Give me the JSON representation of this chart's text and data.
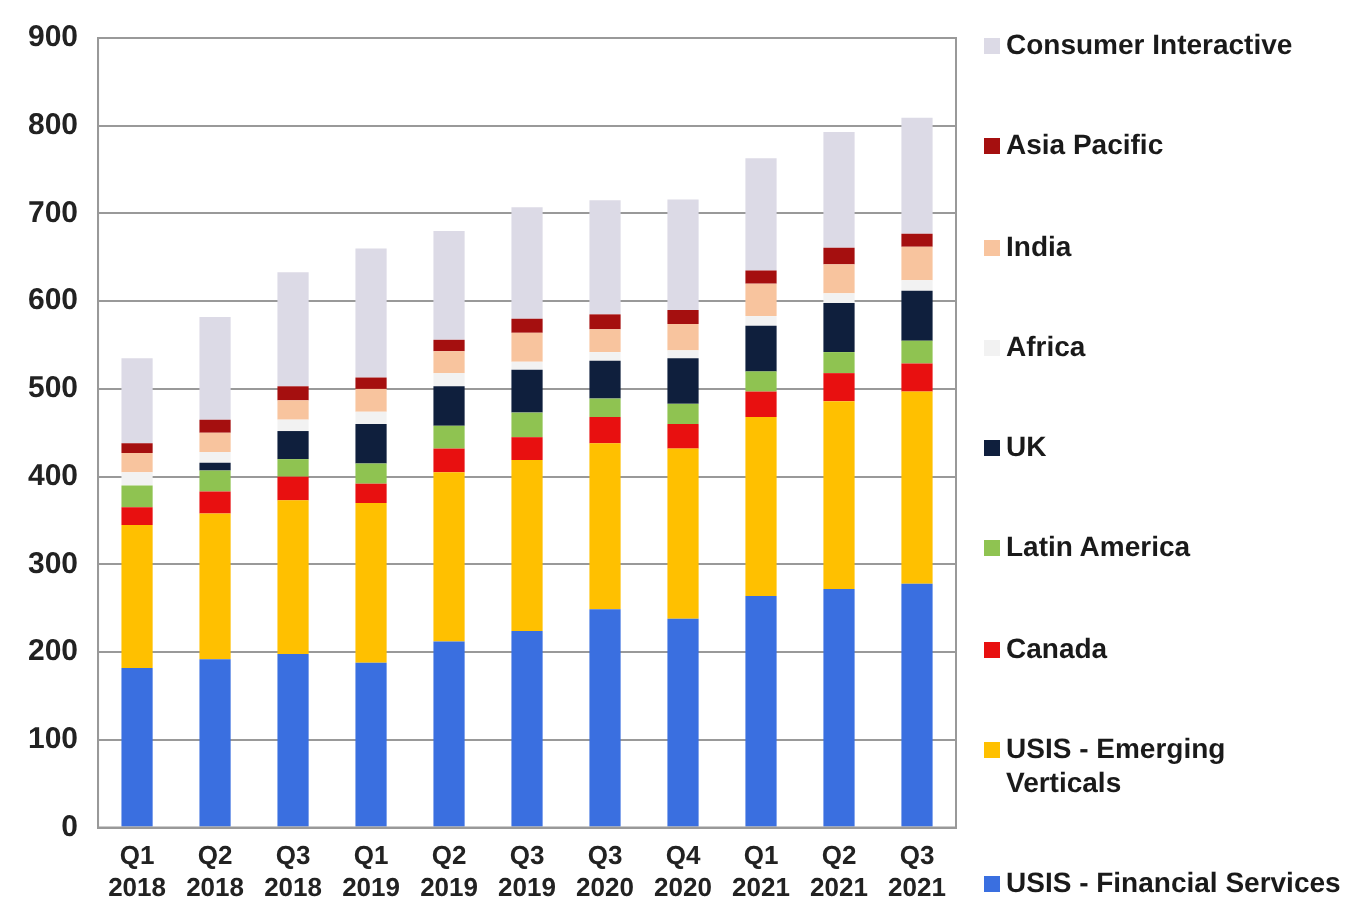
{
  "chart_data": {
    "type": "bar",
    "stacked": true,
    "categories": [
      "Q1 2018",
      "Q2 2018",
      "Q3 2018",
      "Q1 2019",
      "Q2 2019",
      "Q3 2019",
      "Q3 2020",
      "Q4 2020",
      "Q1 2021",
      "Q2 2021",
      "Q3 2021"
    ],
    "series": [
      {
        "name": "USIS - Financial Services",
        "color": "#3a6fe0",
        "values": [
          182,
          192,
          198,
          188,
          212,
          224,
          249,
          238,
          264,
          272,
          278
        ]
      },
      {
        "name": "USIS - Emerging Verticals",
        "color": "#ffc000",
        "values": [
          163,
          166,
          175,
          182,
          193,
          195,
          189,
          194,
          204,
          214,
          219
        ]
      },
      {
        "name": "Canada",
        "color": "#e81010",
        "values": [
          20,
          25,
          27,
          22,
          27,
          26,
          30,
          28,
          29,
          32,
          32
        ]
      },
      {
        "name": "Latin America",
        "color": "#8fc351",
        "values": [
          25,
          24,
          20,
          23,
          26,
          28,
          21,
          23,
          23,
          24,
          26
        ]
      },
      {
        "name": "UK",
        "color": "#0f1f3d",
        "values": [
          0,
          9,
          32,
          45,
          45,
          49,
          43,
          52,
          52,
          56,
          57
        ]
      },
      {
        "name": "Africa",
        "color": "#f2f2f2",
        "values": [
          15,
          12,
          13,
          14,
          15,
          9,
          10,
          9,
          11,
          11,
          12
        ]
      },
      {
        "name": "India",
        "color": "#f8c49e",
        "values": [
          22,
          22,
          22,
          26,
          25,
          33,
          26,
          30,
          37,
          33,
          38
        ]
      },
      {
        "name": "Asia Pacific",
        "color": "#a50f0f",
        "values": [
          11,
          15,
          16,
          13,
          13,
          16,
          17,
          16,
          15,
          19,
          15
        ]
      },
      {
        "name": "Consumer Interactive",
        "color": "#dcdae6",
        "values": [
          97,
          117,
          130,
          147,
          124,
          127,
          130,
          126,
          128,
          132,
          132
        ]
      }
    ],
    "ylim": [
      0,
      900
    ],
    "yticks": [
      0,
      100,
      200,
      300,
      400,
      500,
      600,
      700,
      800,
      900
    ],
    "grid": "y",
    "legend": "right"
  }
}
